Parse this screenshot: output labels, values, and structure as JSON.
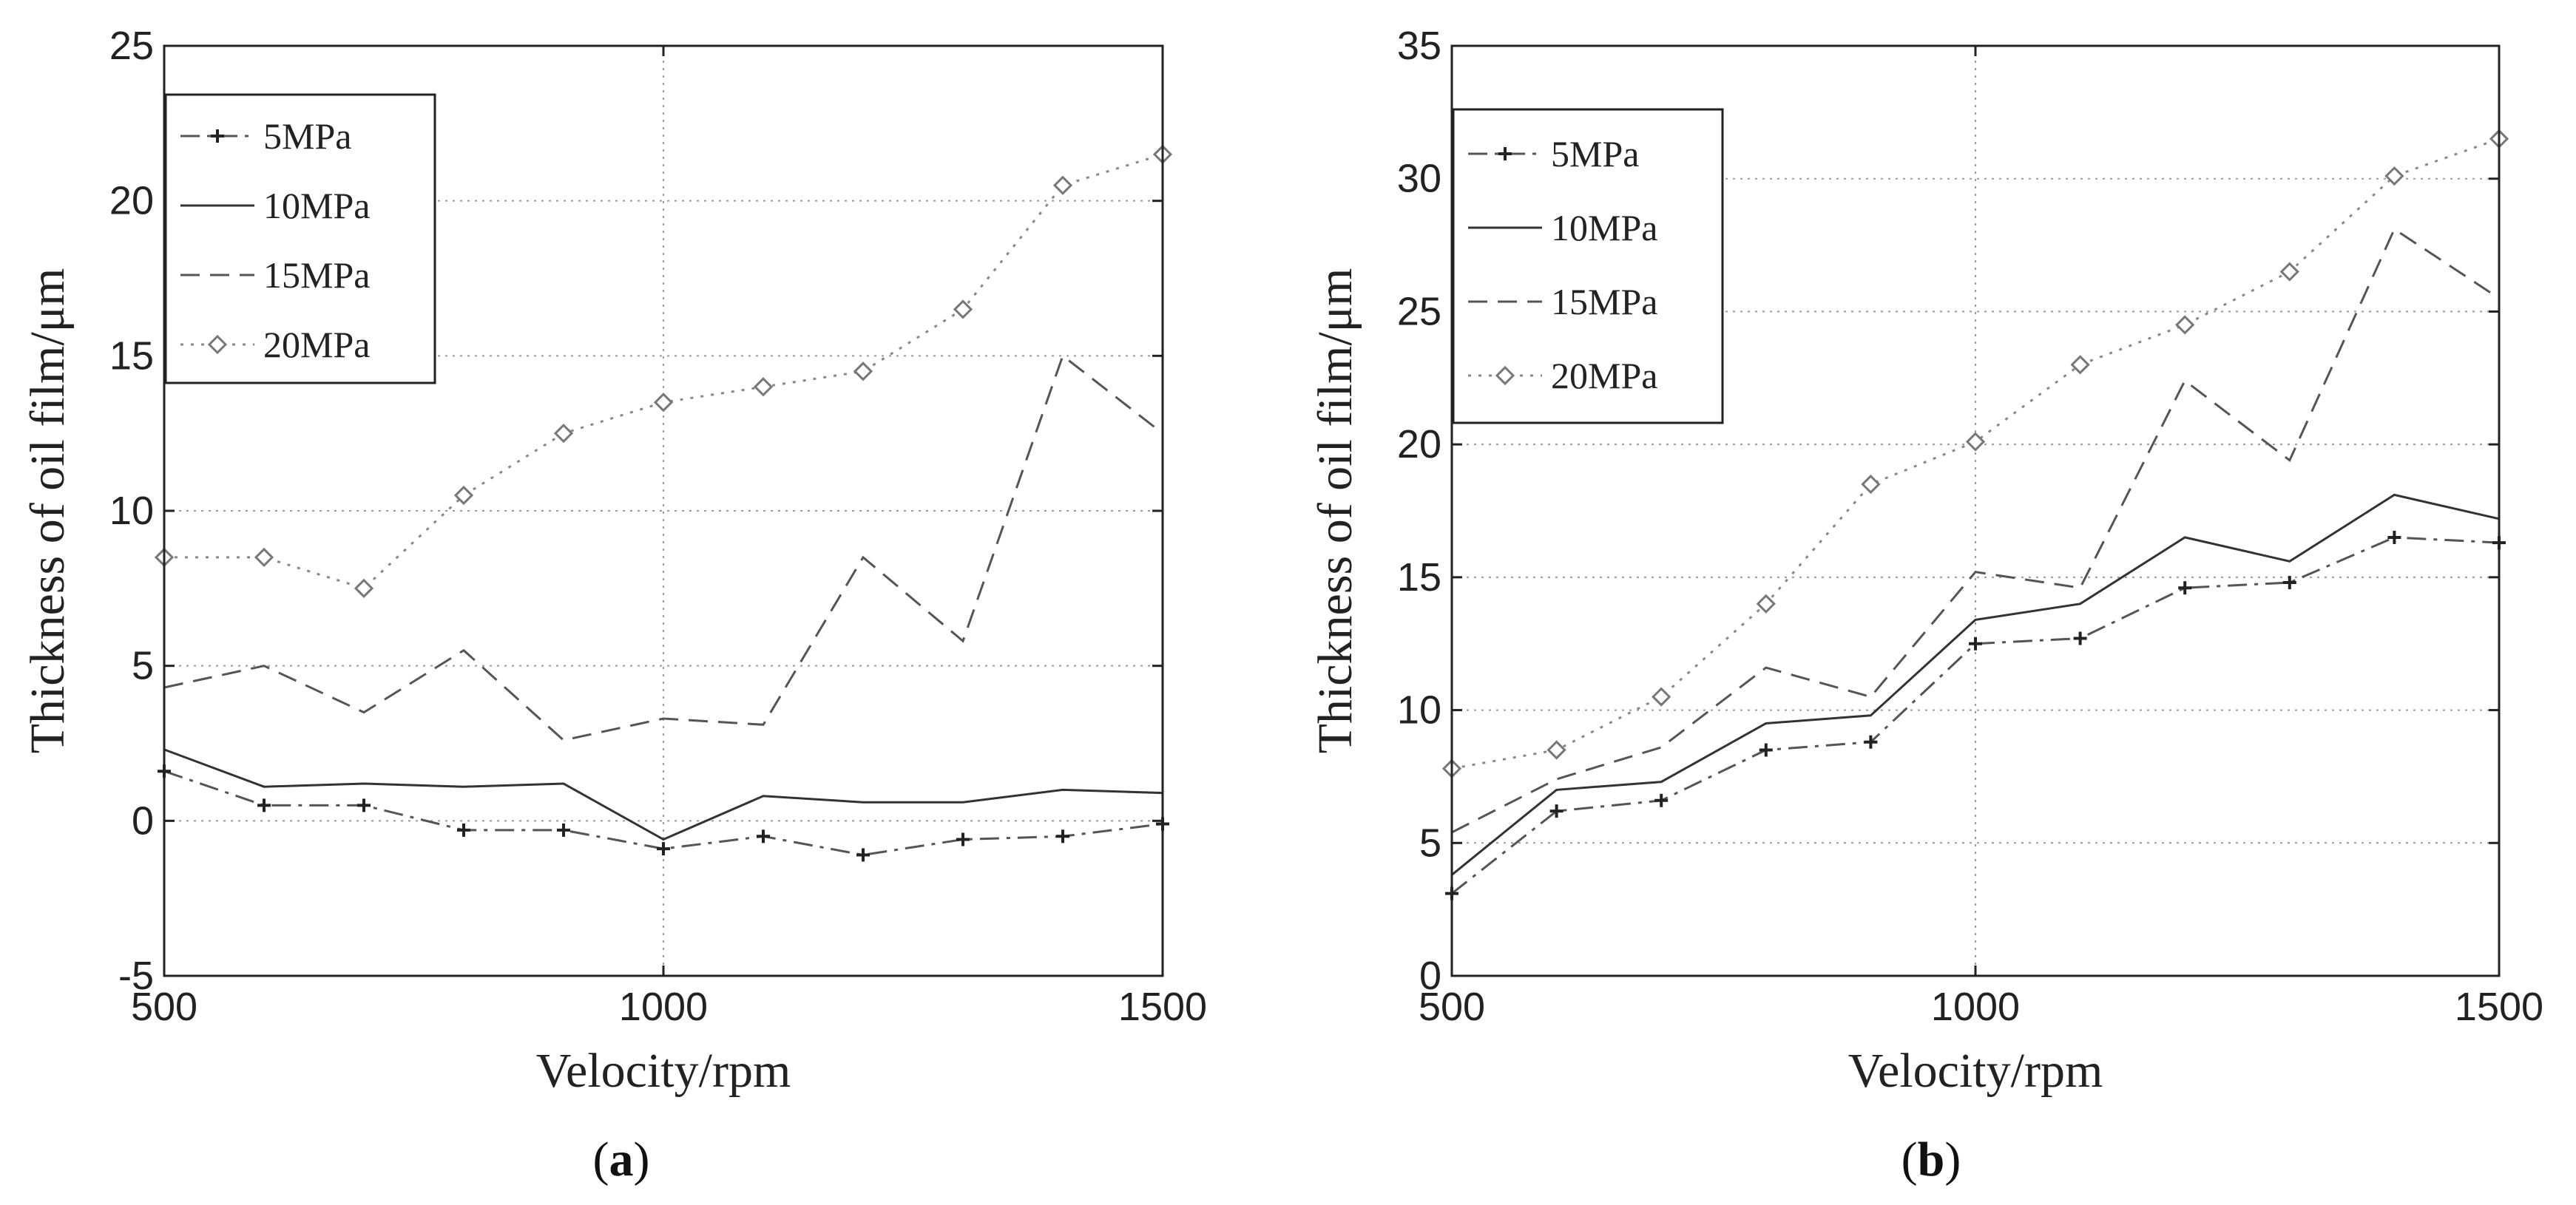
{
  "chart_data": [
    {
      "type": "line",
      "panel_label": "a",
      "xlabel": "Velocity/rpm",
      "ylabel": "Thickness of oil film/μm",
      "xlim": [
        500,
        1500
      ],
      "ylim": [
        -5,
        25
      ],
      "xticks": [
        500,
        1000,
        1500
      ],
      "yticks": [
        -5,
        0,
        5,
        10,
        15,
        20,
        25
      ],
      "grid": true,
      "legend_position": "top-left",
      "x": [
        500,
        600,
        700,
        800,
        900,
        1000,
        1100,
        1200,
        1300,
        1400,
        1500
      ],
      "series": [
        {
          "name": "5MPa",
          "style": "dashdot",
          "marker": "plus",
          "values": [
            1.6,
            0.5,
            0.5,
            -0.3,
            -0.3,
            -0.9,
            -0.5,
            -1.1,
            -0.6,
            -0.5,
            -0.1
          ]
        },
        {
          "name": "10MPa",
          "style": "solid",
          "marker": "none",
          "values": [
            2.3,
            1.1,
            1.2,
            1.1,
            1.2,
            -0.6,
            0.8,
            0.6,
            0.6,
            1.0,
            0.9
          ]
        },
        {
          "name": "15MPa",
          "style": "dashed",
          "marker": "none",
          "values": [
            4.3,
            5.0,
            3.5,
            5.5,
            2.6,
            3.3,
            3.1,
            8.5,
            5.8,
            15.0,
            12.5
          ]
        },
        {
          "name": "20MPa",
          "style": "dotted",
          "marker": "diamond",
          "values": [
            8.5,
            8.5,
            7.5,
            10.5,
            12.5,
            13.5,
            14.0,
            14.5,
            16.5,
            20.5,
            21.5
          ]
        }
      ]
    },
    {
      "type": "line",
      "panel_label": "b",
      "xlabel": "Velocity/rpm",
      "ylabel": "Thickness of oil film/μm",
      "xlim": [
        500,
        1500
      ],
      "ylim": [
        0,
        35
      ],
      "xticks": [
        500,
        1000,
        1500
      ],
      "yticks": [
        0,
        5,
        10,
        15,
        20,
        25,
        30,
        35
      ],
      "grid": true,
      "legend_position": "top-left",
      "x": [
        500,
        600,
        700,
        800,
        900,
        1000,
        1100,
        1200,
        1300,
        1400,
        1500
      ],
      "series": [
        {
          "name": "5MPa",
          "style": "dashdot",
          "marker": "plus",
          "values": [
            3.1,
            6.2,
            6.6,
            8.5,
            8.8,
            12.5,
            12.7,
            14.6,
            14.8,
            16.5,
            16.3
          ]
        },
        {
          "name": "10MPa",
          "style": "solid",
          "marker": "none",
          "values": [
            3.8,
            7.0,
            7.3,
            9.5,
            9.8,
            13.4,
            14.0,
            16.5,
            15.6,
            18.1,
            17.2
          ]
        },
        {
          "name": "15MPa",
          "style": "dashed",
          "marker": "none",
          "values": [
            5.4,
            7.4,
            8.6,
            11.6,
            10.5,
            15.2,
            14.6,
            22.4,
            19.4,
            28.1,
            25.5
          ]
        },
        {
          "name": "20MPa",
          "style": "dotted",
          "marker": "diamond",
          "values": [
            7.8,
            8.5,
            10.5,
            14.0,
            18.5,
            20.1,
            23.0,
            24.5,
            26.5,
            30.1,
            31.5
          ]
        }
      ]
    }
  ],
  "captions": [
    {
      "open": "(",
      "letter": "a",
      "close": ")"
    },
    {
      "open": "(",
      "letter": "b",
      "close": ")"
    }
  ]
}
